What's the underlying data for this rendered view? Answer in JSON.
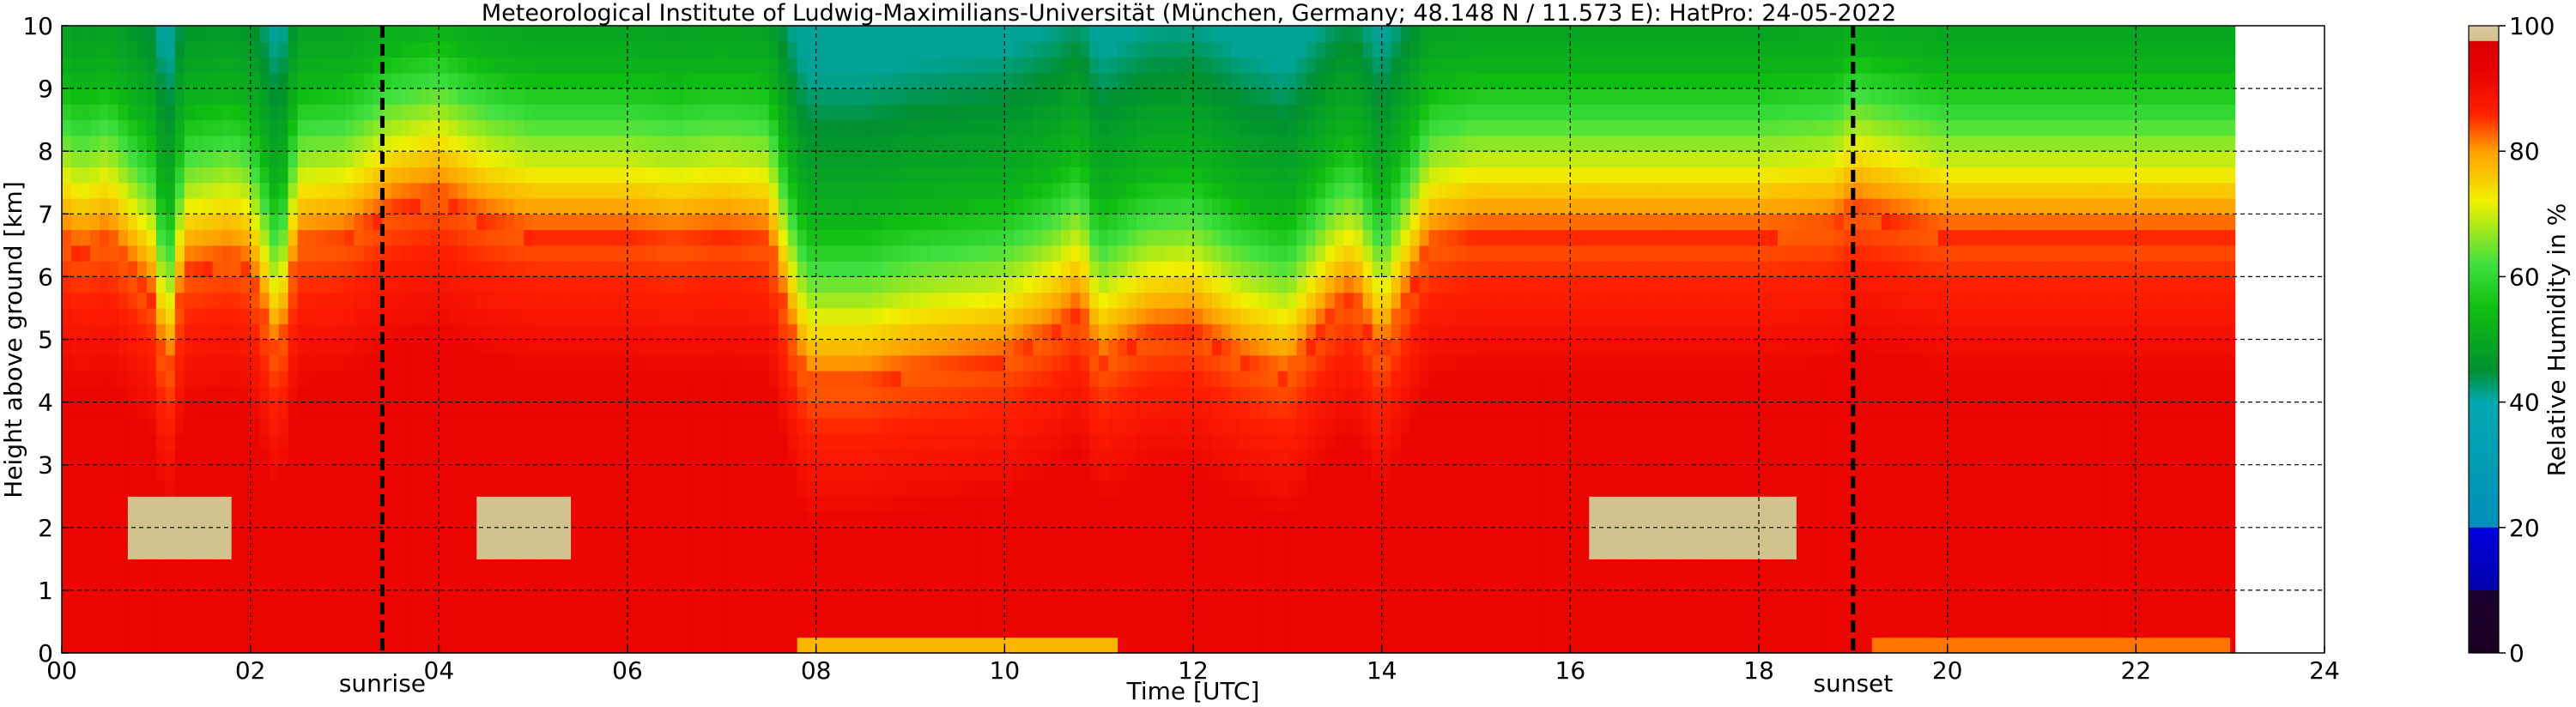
{
  "chart_data": {
    "type": "heatmap",
    "title": "Meteorological Institute of Ludwig-Maximilians-Universität (München, Germany; 48.148 N / 11.573 E):    HatPro: 24-05-2022",
    "xlabel": "Time [UTC]",
    "ylabel": "Height above ground [km]",
    "colorbar_label": "Relative Humidity in %",
    "xlim": [
      0,
      24
    ],
    "ylim": [
      0,
      10
    ],
    "clim": [
      0,
      100
    ],
    "data_end_hour": 23.05,
    "x_ticks": [
      {
        "value": 0,
        "label": "00"
      },
      {
        "value": 2,
        "label": "02"
      },
      {
        "value": 4,
        "label": "04"
      },
      {
        "value": 6,
        "label": "06"
      },
      {
        "value": 8,
        "label": "08"
      },
      {
        "value": 10,
        "label": "10"
      },
      {
        "value": 12,
        "label": "12"
      },
      {
        "value": 14,
        "label": "14"
      },
      {
        "value": 16,
        "label": "16"
      },
      {
        "value": 18,
        "label": "18"
      },
      {
        "value": 20,
        "label": "20"
      },
      {
        "value": 22,
        "label": "22"
      },
      {
        "value": 24,
        "label": "24"
      }
    ],
    "y_ticks": [
      {
        "value": 0,
        "label": "0"
      },
      {
        "value": 1,
        "label": "1"
      },
      {
        "value": 2,
        "label": "2"
      },
      {
        "value": 3,
        "label": "3"
      },
      {
        "value": 4,
        "label": "4"
      },
      {
        "value": 5,
        "label": "5"
      },
      {
        "value": 6,
        "label": "6"
      },
      {
        "value": 7,
        "label": "7"
      },
      {
        "value": 8,
        "label": "8"
      },
      {
        "value": 9,
        "label": "9"
      },
      {
        "value": 10,
        "label": "10"
      }
    ],
    "colorbar_ticks": [
      {
        "value": 0,
        "label": "0"
      },
      {
        "value": 20,
        "label": "20"
      },
      {
        "value": 40,
        "label": "40"
      },
      {
        "value": 60,
        "label": "60"
      },
      {
        "value": 80,
        "label": "80"
      },
      {
        "value": 100,
        "label": "100"
      }
    ],
    "colormap": [
      {
        "v": 0,
        "color": "#1a0020"
      },
      {
        "v": 10,
        "color": "#1a0030"
      },
      {
        "v": 10.01,
        "color": "#0000a8"
      },
      {
        "v": 20,
        "color": "#0000e0"
      },
      {
        "v": 20.01,
        "color": "#0090b8"
      },
      {
        "v": 40,
        "color": "#00a8b0"
      },
      {
        "v": 45,
        "color": "#009030"
      },
      {
        "v": 55,
        "color": "#10c010"
      },
      {
        "v": 62,
        "color": "#40e040"
      },
      {
        "v": 72,
        "color": "#f0f000"
      },
      {
        "v": 80,
        "color": "#ffa000"
      },
      {
        "v": 86,
        "color": "#ff2000"
      },
      {
        "v": 93,
        "color": "#e80000"
      },
      {
        "v": 97.5,
        "color": "#d80000"
      },
      {
        "v": 97.6,
        "color": "#d2c28c"
      },
      {
        "v": 100,
        "color": "#d6c8a0"
      }
    ],
    "humidity_profile": {
      "x": [
        0.0,
        0.2,
        0.5,
        1.0,
        1.1,
        1.3,
        1.8,
        2.0,
        2.3,
        2.5,
        3.0,
        3.5,
        4.0,
        4.5,
        5.0,
        6.0,
        6.5,
        7.0,
        7.5,
        7.7,
        7.9,
        8.5,
        9.0,
        10.0,
        10.5,
        10.8,
        11.0,
        11.5,
        12.0,
        12.3,
        12.5,
        13.0,
        13.5,
        13.7,
        14.0,
        14.5,
        15.0,
        16.0,
        16.5,
        17.0,
        18.0,
        18.8,
        19.0,
        19.5,
        20.0,
        21.0,
        22.0,
        23.0
      ],
      "top_km": [
        6.5,
        6.3,
        6.5,
        5.5,
        4.0,
        6.0,
        6.2,
        6.0,
        4.5,
        6.4,
        6.5,
        7.0,
        7.2,
        6.8,
        6.6,
        6.6,
        6.5,
        6.6,
        6.5,
        5.2,
        4.2,
        4.2,
        4.4,
        4.6,
        5.0,
        5.4,
        4.5,
        5.0,
        5.1,
        4.8,
        4.6,
        4.3,
        5.4,
        5.6,
        4.6,
        6.4,
        6.6,
        6.6,
        6.6,
        6.6,
        6.6,
        6.7,
        7.0,
        6.8,
        6.6,
        6.6,
        6.6,
        6.6
      ]
    },
    "annotations": [
      {
        "label": "sunrise",
        "x": 3.4
      },
      {
        "label": "sunset",
        "x": 19.0
      }
    ]
  }
}
